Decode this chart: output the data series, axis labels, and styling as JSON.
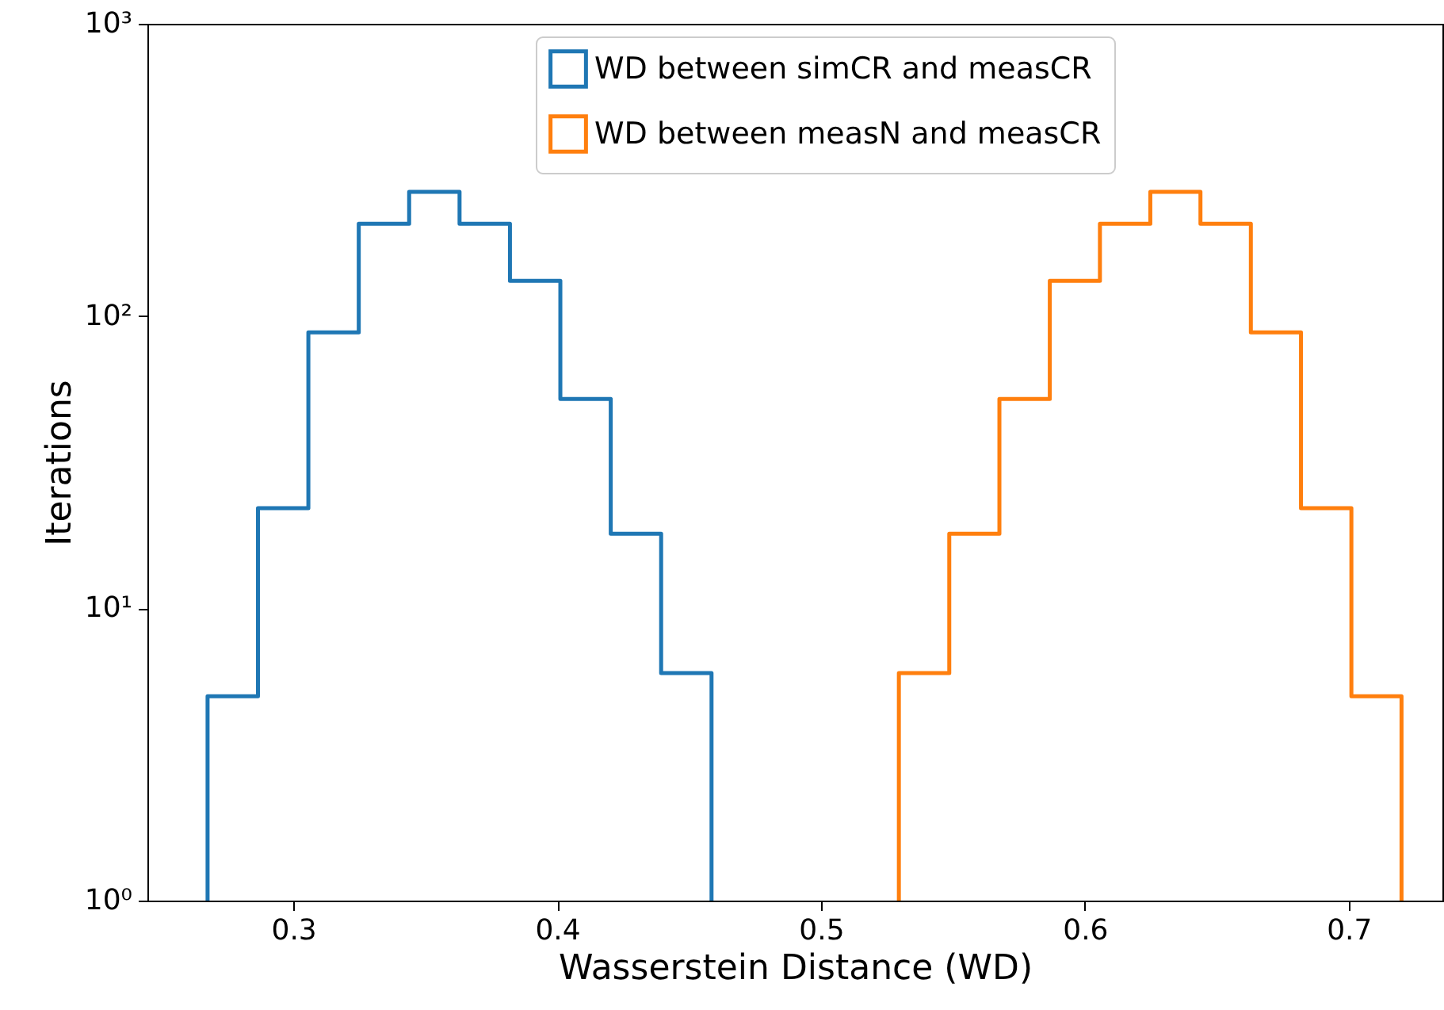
{
  "chart_data": {
    "type": "step",
    "xlabel": "Wasserstein Distance (WD)",
    "ylabel": "Iterations",
    "series": [
      {
        "name": "WD between simCR and measCR",
        "color": "#1f77b4",
        "x": [
          0.2675,
          0.2675,
          0.2866,
          0.3057,
          0.3248,
          0.3439,
          0.363,
          0.3821,
          0.4012,
          0.4203,
          0.4394,
          0.4585
        ],
        "values": [
          1,
          5,
          22,
          88,
          207,
          266,
          207,
          132,
          52,
          18,
          6,
          1
        ]
      },
      {
        "name": "WD between measN and measCR",
        "color": "#ff7f0e",
        "x": [
          0.5295,
          0.5295,
          0.5486,
          0.5676,
          0.5867,
          0.6057,
          0.6248,
          0.6438,
          0.6629,
          0.6819,
          0.701,
          0.72
        ],
        "values": [
          1,
          6,
          18,
          52,
          132,
          207,
          266,
          207,
          88,
          22,
          5,
          1
        ]
      }
    ],
    "xlim": [
      0.2447,
      0.7355
    ],
    "xticks": [
      0.3,
      0.4,
      0.5,
      0.6,
      0.7
    ],
    "ylim": [
      1,
      1000
    ],
    "yticks": [
      {
        "value": 1,
        "label": "10⁰"
      },
      {
        "value": 10,
        "label": "10¹"
      },
      {
        "value": 100,
        "label": "10²"
      },
      {
        "value": 1000,
        "label": "10³"
      }
    ],
    "log": true,
    "legend": "top"
  }
}
